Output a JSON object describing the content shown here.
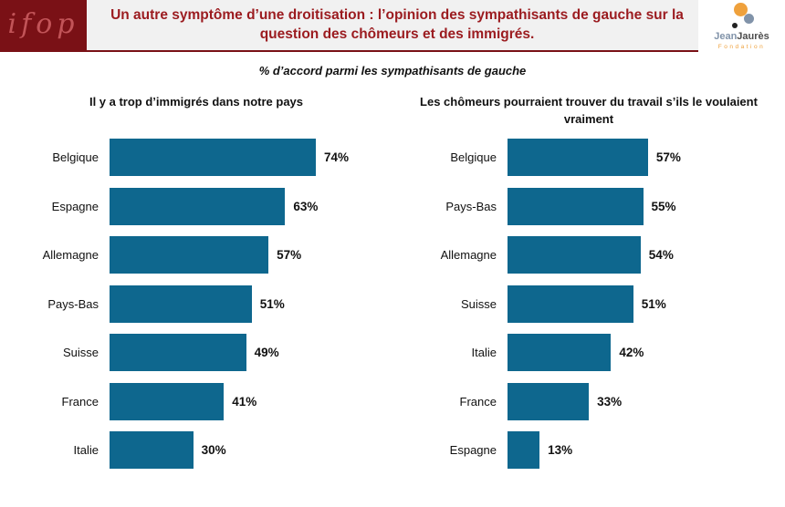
{
  "header": {
    "ifop_logo_text": "ifop",
    "title": "Un autre symptôme d’une droitisation : l’opinion des sympathisants de gauche sur la question des chômeurs et des immigrés.",
    "jj_logo": {
      "jean": "Jean",
      "jaures": "Jaurès",
      "fondation": "Fondation"
    }
  },
  "subtitle": "% d’accord parmi les sympathisants de gauche",
  "colors": {
    "bar": "#0E678E",
    "title_red": "#9B1B1F",
    "maroon": "#7A1116",
    "jj_orange": "#EFA13C",
    "jj_blue": "#8193A9"
  },
  "chart_data": [
    {
      "type": "bar",
      "orientation": "horizontal",
      "title": "Il y a trop d’immigrés dans notre pays",
      "categories": [
        "Belgique",
        "Espagne",
        "Allemagne",
        "Pays-Bas",
        "Suisse",
        "France",
        "Italie"
      ],
      "values": [
        74,
        63,
        57,
        51,
        49,
        41,
        30
      ],
      "value_suffix": "%",
      "xlim": [
        0,
        100
      ],
      "grid": false,
      "data_labels": true,
      "legend": false
    },
    {
      "type": "bar",
      "orientation": "horizontal",
      "title": "Les chômeurs pourraient trouver du travail s’ils le voulaient vraiment",
      "categories": [
        "Belgique",
        "Pays-Bas",
        "Allemagne",
        "Suisse",
        "Italie",
        "France",
        "Espagne"
      ],
      "values": [
        57,
        55,
        54,
        51,
        42,
        33,
        13
      ],
      "value_suffix": "%",
      "xlim": [
        0,
        100
      ],
      "grid": false,
      "data_labels": true,
      "legend": false
    }
  ]
}
